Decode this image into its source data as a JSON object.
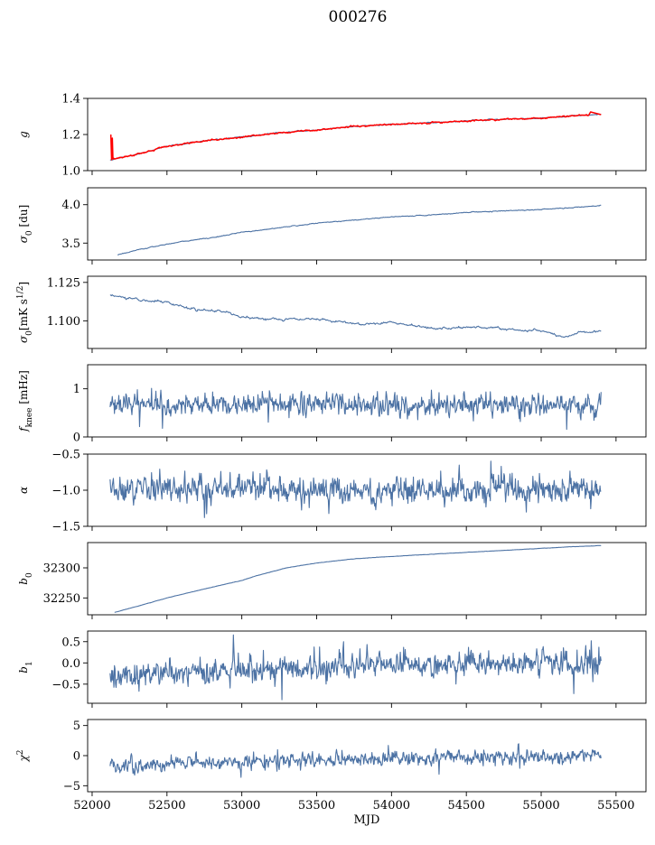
{
  "figure": {
    "suptitle": "000276"
  },
  "chart_data": [
    {
      "type": "line",
      "ylabel_parts": [
        {
          "t": "g",
          "i": true
        }
      ],
      "ylim": [
        1.0,
        1.4
      ],
      "yticks": [
        "1.4",
        "1.2",
        "1.0"
      ],
      "ytick_values": [
        1.4,
        1.2,
        1.0
      ],
      "xlim": [
        51970,
        55700
      ],
      "series": [
        {
          "color": "#4c72a4",
          "kind": "trend",
          "x0": 52120,
          "x1": 55400,
          "knots": [
            [
              52120,
              1.06
            ],
            [
              52300,
              1.09
            ],
            [
              52500,
              1.135
            ],
            [
              52750,
              1.165
            ],
            [
              53000,
              1.185
            ],
            [
              53250,
              1.21
            ],
            [
              53500,
              1.225
            ],
            [
              53750,
              1.245
            ],
            [
              54000,
              1.255
            ],
            [
              54250,
              1.265
            ],
            [
              54500,
              1.275
            ],
            [
              54750,
              1.285
            ],
            [
              55000,
              1.29
            ],
            [
              55250,
              1.305
            ],
            [
              55400,
              1.31
            ]
          ],
          "noise": 0.003,
          "seed": 11
        },
        {
          "color": "#ff0000",
          "kind": "trend",
          "x0": 52120,
          "x1": 55480,
          "knots": [
            [
              52120,
              1.06
            ],
            [
              52300,
              1.09
            ],
            [
              52500,
              1.135
            ],
            [
              52750,
              1.165
            ],
            [
              53000,
              1.185
            ],
            [
              53250,
              1.21
            ],
            [
              53500,
              1.225
            ],
            [
              53750,
              1.245
            ],
            [
              54000,
              1.255
            ],
            [
              54250,
              1.265
            ],
            [
              54500,
              1.275
            ],
            [
              54750,
              1.285
            ],
            [
              55000,
              1.29
            ],
            [
              55250,
              1.305
            ],
            [
              55480,
              1.31
            ]
          ],
          "noise": 0.004,
          "seed": 12,
          "spikes": [
            [
              52125,
              1.2
            ],
            [
              52130,
              1.06
            ],
            [
              52135,
              1.18
            ],
            [
              55330,
              1.325
            ],
            [
              55400,
              1.31
            ]
          ]
        }
      ]
    },
    {
      "type": "line",
      "ylabel_parts": [
        {
          "t": "σ",
          "i": true
        },
        {
          "t": "0",
          "sub": true
        },
        {
          "t": " [du]"
        }
      ],
      "ylim": [
        3.28,
        4.22
      ],
      "yticks": [
        "4.0",
        "3.5"
      ],
      "ytick_values": [
        4.0,
        3.5
      ],
      "xlim": [
        51970,
        55700
      ],
      "series": [
        {
          "color": "#4c72a4",
          "kind": "trend",
          "x0": 52170,
          "x1": 55400,
          "knots": [
            [
              52170,
              3.35
            ],
            [
              52400,
              3.45
            ],
            [
              52600,
              3.52
            ],
            [
              52800,
              3.57
            ],
            [
              53000,
              3.64
            ],
            [
              53250,
              3.7
            ],
            [
              53500,
              3.76
            ],
            [
              53750,
              3.8
            ],
            [
              54000,
              3.84
            ],
            [
              54300,
              3.87
            ],
            [
              54600,
              3.91
            ],
            [
              54900,
              3.93
            ],
            [
              55200,
              3.96
            ],
            [
              55400,
              3.99
            ]
          ],
          "noise": 0.006,
          "seed": 21
        }
      ]
    },
    {
      "type": "line",
      "ylabel_parts": [
        {
          "t": "σ",
          "i": true
        },
        {
          "t": "0",
          "sub": true
        },
        {
          "t": "[mK s"
        },
        {
          "t": "1/2",
          "sup": true
        },
        {
          "t": "]"
        }
      ],
      "ylim": [
        1.082,
        1.129
      ],
      "yticks": [
        "1.125",
        "1.100"
      ],
      "ytick_values": [
        1.125,
        1.1
      ],
      "xlim": [
        51970,
        55700
      ],
      "series": [
        {
          "color": "#4c72a4",
          "kind": "trend",
          "x0": 52120,
          "x1": 55400,
          "knots": [
            [
              52120,
              1.1165
            ],
            [
              52300,
              1.114
            ],
            [
              52500,
              1.112
            ],
            [
              52700,
              1.107
            ],
            [
              52900,
              1.106
            ],
            [
              53000,
              1.102
            ],
            [
              53300,
              1.101
            ],
            [
              53500,
              1.101
            ],
            [
              53800,
              1.098
            ],
            [
              54000,
              1.099
            ],
            [
              54300,
              1.095
            ],
            [
              54600,
              1.096
            ],
            [
              54900,
              1.0935
            ],
            [
              55000,
              1.094
            ],
            [
              55150,
              1.089
            ],
            [
              55250,
              1.093
            ],
            [
              55400,
              1.093
            ]
          ],
          "noise": 0.0008,
          "seed": 31
        }
      ]
    },
    {
      "type": "line",
      "ylabel_parts": [
        {
          "t": "f",
          "i": true
        },
        {
          "t": "knee",
          "sub": true
        },
        {
          "t": " [mHz]"
        }
      ],
      "ylim": [
        0,
        1.5
      ],
      "yticks": [
        "1",
        "0"
      ],
      "ytick_values": [
        1,
        0
      ],
      "xlim": [
        51970,
        55700
      ],
      "series": [
        {
          "color": "#4c72a4",
          "kind": "noise",
          "x0": 52120,
          "x1": 55400,
          "n": 900,
          "mean": 0.68,
          "sd": 0.11,
          "seed": 41
        }
      ]
    },
    {
      "type": "line",
      "ylabel_parts": [
        {
          "t": "α",
          "i": true
        }
      ],
      "ylim": [
        -1.5,
        -0.5
      ],
      "yticks": [
        "−0.5",
        "−1.0",
        "−1.5"
      ],
      "ytick_values": [
        -0.5,
        -1.0,
        -1.5
      ],
      "xlim": [
        51970,
        55700
      ],
      "series": [
        {
          "color": "#4c72a4",
          "kind": "noise",
          "x0": 52120,
          "x1": 55400,
          "n": 900,
          "mean": -1.0,
          "sd": 0.09,
          "seed": 51
        }
      ]
    },
    {
      "type": "line",
      "ylabel_parts": [
        {
          "t": "b",
          "i": true
        },
        {
          "t": "0",
          "sub": true
        }
      ],
      "ylim": [
        32222,
        32342
      ],
      "yticks": [
        "32300",
        "32250"
      ],
      "ytick_values": [
        32300,
        32250
      ],
      "xlim": [
        51970,
        55700
      ],
      "series": [
        {
          "color": "#4c72a4",
          "kind": "trend",
          "x0": 52150,
          "x1": 55400,
          "knots": [
            [
              52150,
              32226
            ],
            [
              52300,
              32236
            ],
            [
              52500,
              32250
            ],
            [
              52750,
              32265
            ],
            [
              53000,
              32279
            ],
            [
              53100,
              32287
            ],
            [
              53300,
              32300
            ],
            [
              53500,
              32308
            ],
            [
              53750,
              32315
            ],
            [
              54000,
              32319
            ],
            [
              54300,
              32323
            ],
            [
              54600,
              32327
            ],
            [
              54900,
              32331
            ],
            [
              55200,
              32335
            ],
            [
              55400,
              32337
            ]
          ],
          "noise": 0.25,
          "seed": 61
        }
      ]
    },
    {
      "type": "line",
      "ylabel_parts": [
        {
          "t": "b",
          "i": true
        },
        {
          "t": "1",
          "sub": true
        }
      ],
      "ylim": [
        -0.95,
        0.75
      ],
      "yticks": [
        "0.5",
        "0.0",
        "−0.5"
      ],
      "ytick_values": [
        0.5,
        0.0,
        -0.5
      ],
      "xlim": [
        51970,
        55700
      ],
      "series": [
        {
          "color": "#4c72a4",
          "kind": "noise",
          "x0": 52120,
          "x1": 55400,
          "n": 900,
          "meanKnots": [
            [
              52120,
              -0.3
            ],
            [
              53000,
              -0.15
            ],
            [
              54000,
              -0.05
            ],
            [
              55400,
              0.0
            ]
          ],
          "sd": 0.15,
          "seed": 71
        }
      ]
    },
    {
      "type": "line",
      "ylabel_parts": [
        {
          "t": "χ",
          "i": true
        },
        {
          "t": "2",
          "sup": true
        }
      ],
      "ylim": [
        -6,
        6
      ],
      "yticks": [
        "5",
        "0",
        "−5"
      ],
      "ytick_values": [
        5,
        0,
        -5
      ],
      "xlim": [
        51970,
        55700
      ],
      "xlabel": "MJD",
      "xticks": [
        "52000",
        "52500",
        "53000",
        "53500",
        "54000",
        "54500",
        "55000",
        "55500"
      ],
      "xtick_values": [
        52000,
        52500,
        53000,
        53500,
        54000,
        54500,
        55000,
        55500
      ],
      "series": [
        {
          "color": "#4c72a4",
          "kind": "noise",
          "x0": 52120,
          "x1": 55400,
          "n": 900,
          "meanKnots": [
            [
              52120,
              -1.6
            ],
            [
              53000,
              -1.0
            ],
            [
              54000,
              -0.5
            ],
            [
              55400,
              0.1
            ]
          ],
          "sd": 0.6,
          "seed": 81
        }
      ]
    }
  ]
}
